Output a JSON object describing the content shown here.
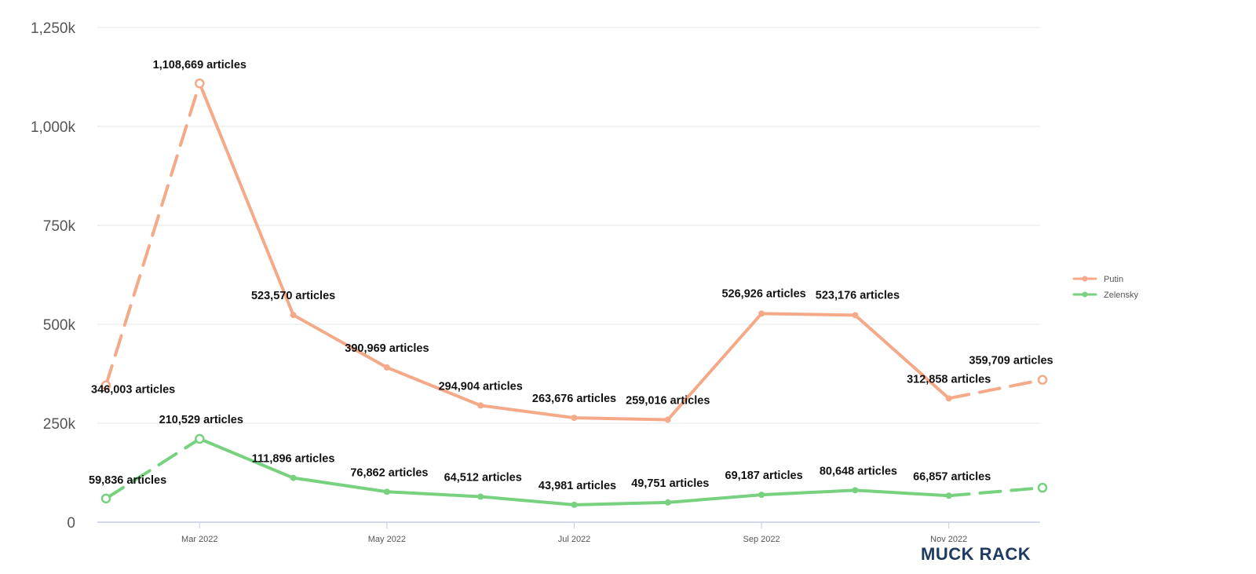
{
  "chart_data": {
    "type": "line",
    "x": [
      "2022-02",
      "2022-03",
      "2022-04",
      "2022-05",
      "2022-06",
      "2022-07",
      "2022-08",
      "2022-09",
      "2022-10",
      "2022-11",
      "2022-12"
    ],
    "x_ticks": [
      {
        "x": "2022-03",
        "label": "Mar 2022"
      },
      {
        "x": "2022-05",
        "label": "May 2022"
      },
      {
        "x": "2022-07",
        "label": "Jul 2022"
      },
      {
        "x": "2022-09",
        "label": "Sep 2022"
      },
      {
        "x": "2022-11",
        "label": "Nov 2022"
      }
    ],
    "y_ticks": [
      {
        "value": 0,
        "label": "0"
      },
      {
        "value": 250000,
        "label": "250k"
      },
      {
        "value": 500000,
        "label": "500k"
      },
      {
        "value": 750000,
        "label": "750k"
      },
      {
        "value": 1000000,
        "label": "1,000k"
      },
      {
        "value": 1250000,
        "label": "1,250k"
      }
    ],
    "ylim": [
      0,
      1250000
    ],
    "grid": "horizontal",
    "legend_position": "right",
    "series": [
      {
        "name": "Putin",
        "color": "#f4a989",
        "values": [
          346003,
          1108669,
          523570,
          390969,
          294904,
          263676,
          259016,
          526926,
          523176,
          312858,
          359709
        ],
        "labels": [
          "346,003 articles",
          "1,108,669 articles",
          "523,570 articles",
          "390,969 articles",
          "294,904 articles",
          "263,676 articles",
          "259,016 articles",
          "526,926 articles",
          "523,176 articles",
          "312,858 articles",
          "359,709 articles"
        ]
      },
      {
        "name": "Zelensky",
        "color": "#77d17f",
        "values": [
          59836,
          210529,
          111896,
          76862,
          64512,
          43981,
          49751,
          69187,
          80648,
          66857,
          87000
        ],
        "labels": [
          "59,836 articles",
          "210,529 articles",
          "111,896 articles",
          "76,862 articles",
          "64,512 articles",
          "43,981 articles",
          "49,751 articles",
          "69,187 articles",
          "80,648 articles",
          "66,857 articles",
          ""
        ]
      }
    ],
    "dashed_segments": [
      [
        0,
        1
      ],
      [
        9,
        10
      ]
    ],
    "hollow_points": [
      0,
      1,
      10
    ]
  },
  "brand": {
    "text": "MUCK RACK",
    "color": "#1f3a5f"
  }
}
